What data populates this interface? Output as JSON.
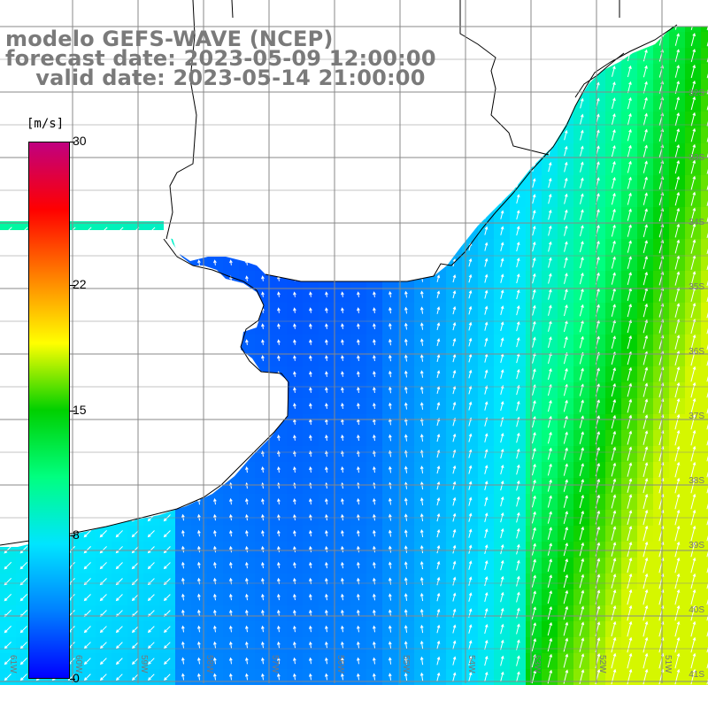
{
  "title": {
    "line1": "modelo GEFS-WAVE (NCEP)",
    "line2": "forecast date: 2023-05-09 12:00:00",
    "line3": "    valid date: 2023-05-14 21:00:00"
  },
  "colorbar": {
    "units": "[m/s]",
    "ticks": [
      {
        "label": "30",
        "value": 30
      },
      {
        "label": "22",
        "value": 22
      },
      {
        "label": "15",
        "value": 15
      },
      {
        "label": "8",
        "value": 8
      },
      {
        "label": "0",
        "value": 0
      }
    ],
    "colors": [
      "#0000ff",
      "#0080ff",
      "#00e5ff",
      "#00ff80",
      "#00d000",
      "#ffff00",
      "#ff8000",
      "#ff0000",
      "#c00080"
    ]
  },
  "lat_labels": [
    "32S",
    "33S",
    "34S",
    "35S",
    "36S",
    "37S",
    "38S",
    "39S",
    "40S",
    "41S"
  ],
  "lon_labels": [
    "61W",
    "60W",
    "59W",
    "58W",
    "57W",
    "56W",
    "55W",
    "54W",
    "53W",
    "52W",
    "51W"
  ],
  "map": {
    "field": "wind speed with direction arrows",
    "land_color": "#ffffff",
    "grid_color": "#808080",
    "coast_color": "#000000"
  }
}
